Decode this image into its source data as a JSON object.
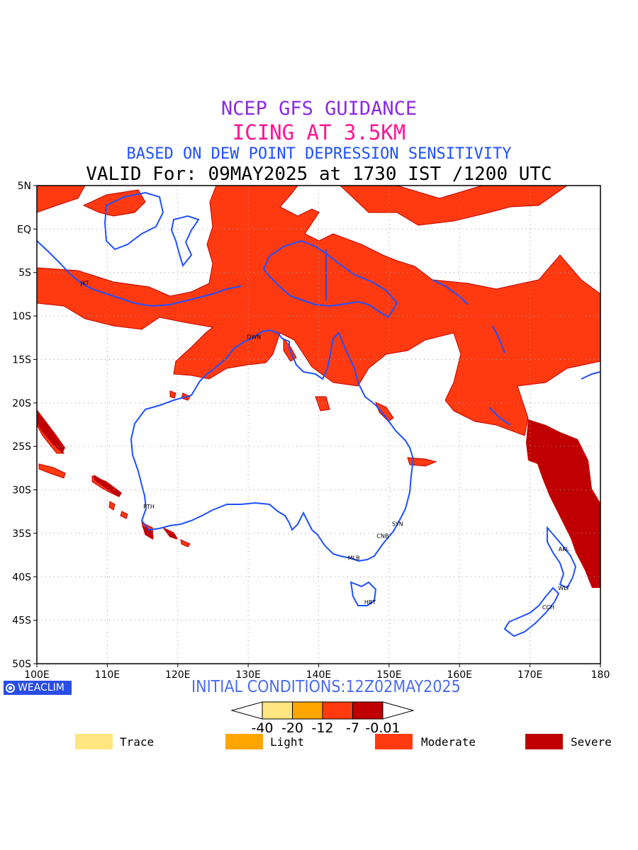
{
  "titles": {
    "line1": "NCEP GFS GUIDANCE",
    "line2": "ICING AT 3.5KM",
    "line3": "BASED ON DEW POINT DEPRESSION SENSITIVITY",
    "line4": "VALID For: 09MAY2025 at 1730 IST /1200 UTC"
  },
  "axes": {
    "lat_labels": [
      "5N",
      "EQ",
      "5S",
      "10S",
      "15S",
      "20S",
      "25S",
      "30S",
      "35S",
      "40S",
      "45S",
      "50S"
    ],
    "lon_labels": [
      "100E",
      "110E",
      "120E",
      "130E",
      "140E",
      "150E",
      "160E",
      "170E",
      "180"
    ],
    "lat_range": [
      -50,
      5
    ],
    "lon_range": [
      100,
      180
    ],
    "grid": "dotted"
  },
  "stations": [
    {
      "code": "JKT",
      "lon": 106.8,
      "lat": -6.2
    },
    {
      "code": "DWN",
      "lon": 130.8,
      "lat": -12.4
    },
    {
      "code": "PTH",
      "lon": 115.9,
      "lat": -31.9
    },
    {
      "code": "SYN",
      "lon": 151.2,
      "lat": -33.9
    },
    {
      "code": "CNB",
      "lon": 149.1,
      "lat": -35.3
    },
    {
      "code": "MLB",
      "lon": 145.0,
      "lat": -37.8
    },
    {
      "code": "HBT",
      "lon": 147.3,
      "lat": -42.9
    },
    {
      "code": "AKL",
      "lon": 174.8,
      "lat": -36.8
    },
    {
      "code": "WLT",
      "lon": 174.8,
      "lat": -41.3
    },
    {
      "code": "CCH",
      "lon": 172.6,
      "lat": -43.5
    }
  ],
  "initial_conditions": "INITIAL CONDITIONS:12Z02MAY2025",
  "brand": "WEACLIM",
  "colorbar": {
    "ticks": [
      "-40",
      "-20",
      "-12",
      "-7",
      "-0.01"
    ],
    "colors": [
      "#ffe680",
      "#ffa500",
      "#ff3a10",
      "#c00000"
    ]
  },
  "legend": [
    {
      "label": "Trace",
      "color": "#ffe680"
    },
    {
      "label": "Light",
      "color": "#ffa500"
    },
    {
      "label": "Moderate",
      "color": "#ff3a10"
    },
    {
      "label": "Severe",
      "color": "#c00000"
    }
  ],
  "colors": {
    "moderate_fill": "#ff3a10",
    "severe_fill": "#c00000",
    "coastline": "#1e50ff"
  }
}
